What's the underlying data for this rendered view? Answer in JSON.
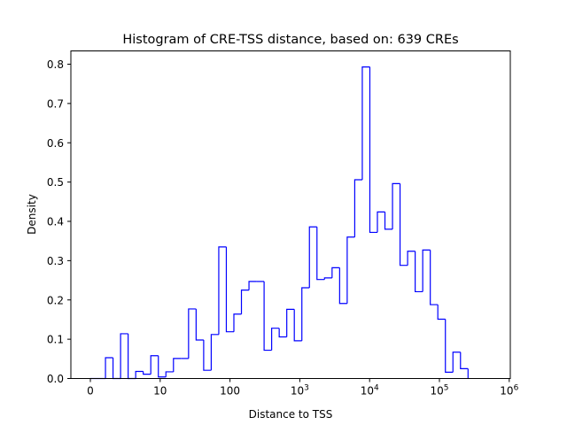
{
  "chart_data": {
    "type": "histogram",
    "histtype": "step",
    "title": "Histogram of CRE-TSS distance, based on: 639 CREs",
    "xlabel": "Distance to TSS",
    "ylabel": "Density",
    "xscale": "symlog",
    "linthresh": 10,
    "xlim": [
      0,
      1000000
    ],
    "ylim": [
      0,
      0.8
    ],
    "bins": 50,
    "bin_range": [
      0,
      257000
    ],
    "densities": [
      0,
      0,
      0.053,
      0,
      0.114,
      0,
      0.018,
      0.011,
      0.058,
      0.004,
      0.017,
      0.051,
      0.051,
      0.177,
      0.098,
      0.021,
      0.112,
      0.335,
      0.119,
      0.164,
      0.225,
      0.247,
      0.247,
      0.072,
      0.128,
      0.106,
      0.176,
      0.096,
      0.231,
      0.386,
      0.252,
      0.256,
      0.282,
      0.191,
      0.36,
      0.506,
      0.793,
      0.372,
      0.424,
      0.38,
      0.496,
      0.288,
      0.324,
      0.221,
      0.327,
      0.188,
      0.151,
      0.016,
      0.067,
      0.025
    ],
    "line_color": "#0000ff",
    "x_ticks": [
      {
        "value": 0,
        "label": "0",
        "sup": ""
      },
      {
        "value": 10,
        "label": "10",
        "sup": ""
      },
      {
        "value": 100,
        "label": "100",
        "sup": ""
      },
      {
        "value": 1000,
        "label": "10",
        "sup": "3"
      },
      {
        "value": 10000,
        "label": "10",
        "sup": "4"
      },
      {
        "value": 100000,
        "label": "10",
        "sup": "5"
      },
      {
        "value": 1000000,
        "label": "10",
        "sup": "6"
      }
    ],
    "y_ticks": [
      {
        "value": 0.0,
        "label": "0.0"
      },
      {
        "value": 0.1,
        "label": "0.1"
      },
      {
        "value": 0.2,
        "label": "0.2"
      },
      {
        "value": 0.3,
        "label": "0.3"
      },
      {
        "value": 0.4,
        "label": "0.4"
      },
      {
        "value": 0.5,
        "label": "0.5"
      },
      {
        "value": 0.6,
        "label": "0.6"
      },
      {
        "value": 0.7,
        "label": "0.7"
      },
      {
        "value": 0.8,
        "label": "0.8"
      }
    ]
  }
}
